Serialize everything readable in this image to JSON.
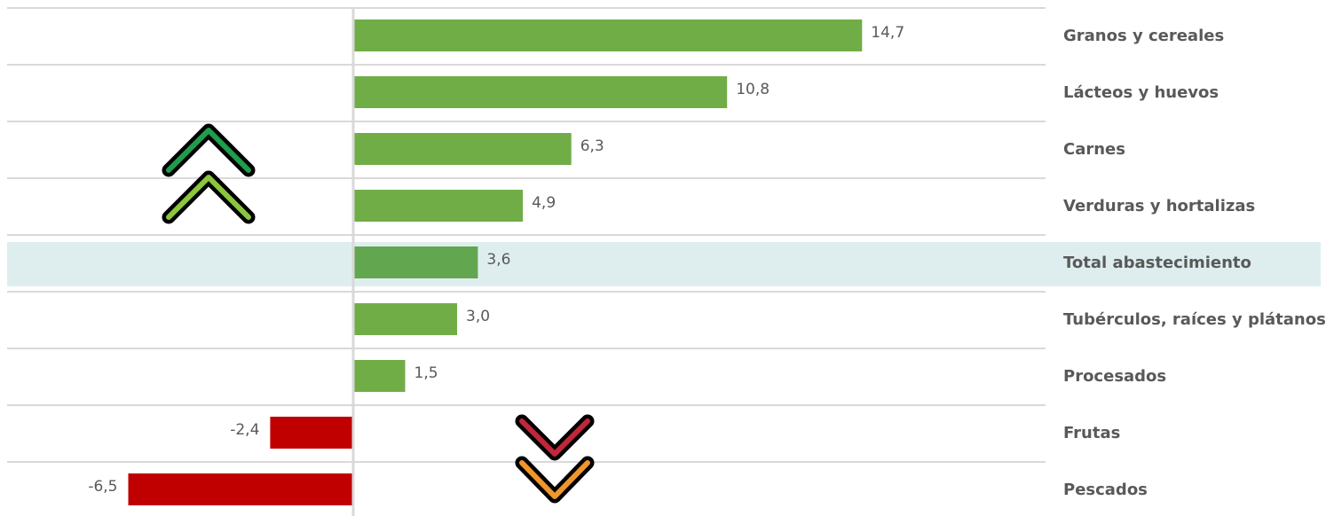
{
  "chart_data": {
    "type": "bar",
    "orientation": "horizontal",
    "categories": [
      "Granos y cereales",
      "Lácteos y huevos",
      "Carnes",
      "Verduras y hortalizas",
      "Total abastecimiento",
      "Tubérculos, raíces y plátanos",
      "Procesados",
      "Frutas",
      "Pescados"
    ],
    "values": [
      14.7,
      10.8,
      6.3,
      4.9,
      3.6,
      3.0,
      1.5,
      -2.4,
      -6.5
    ],
    "value_labels": [
      "14,7",
      "10,8",
      "6,3",
      "4,9",
      "3,6",
      "3,0",
      "1,5",
      "-2,4",
      "-6,5"
    ],
    "colors": [
      "#70ad47",
      "#70ad47",
      "#70ad47",
      "#70ad47",
      "#62a650",
      "#70ad47",
      "#70ad47",
      "#c00000",
      "#c00000"
    ],
    "highlight": 4,
    "highlight_color": "#deeeee",
    "xlim": [
      -10,
      20
    ]
  }
}
